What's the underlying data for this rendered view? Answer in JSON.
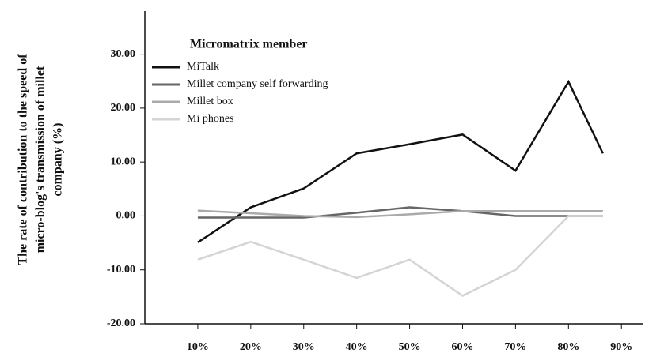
{
  "chart_data": {
    "type": "line",
    "ylabel": [
      "The rate of contribution to the speed of",
      "micro-blog's transmission of millet",
      "company (%)"
    ],
    "legend_title": "Micromatrix member",
    "legend": "upper left",
    "x": [
      10,
      20,
      30,
      40,
      50,
      60,
      70,
      80,
      86.5
    ],
    "series": [
      {
        "name": "MiTalk",
        "color": "#111111",
        "values": [
          -4.9,
          1.6,
          5.1,
          11.6,
          13.3,
          15.1,
          8.4,
          24.9,
          11.6
        ]
      },
      {
        "name": "Millet company self forwarding",
        "color": "#666666",
        "values": [
          -0.3,
          -0.3,
          -0.3,
          0.6,
          1.6,
          0.9,
          0,
          0,
          0
        ]
      },
      {
        "name": "Millet box",
        "color": "#aaaaaa",
        "values": [
          1.0,
          0.5,
          0,
          -0.2,
          0.3,
          0.9,
          0.9,
          0.9,
          0.9
        ]
      },
      {
        "name": "Mi phones",
        "color": "#d4d4d4",
        "values": [
          -8.1,
          -4.8,
          -8.1,
          -11.5,
          -8.1,
          -14.8,
          -10,
          0,
          0
        ]
      }
    ],
    "xlim": [
      0,
      94
    ],
    "xticks": [
      {
        "value": 10,
        "label": "10%"
      },
      {
        "value": 20,
        "label": "20%"
      },
      {
        "value": 30,
        "label": "30%"
      },
      {
        "value": 40,
        "label": "40%"
      },
      {
        "value": 50,
        "label": "50%"
      },
      {
        "value": 60,
        "label": "60%"
      },
      {
        "value": 70,
        "label": "70%"
      },
      {
        "value": 80,
        "label": "80%"
      },
      {
        "value": 90,
        "label": "90%"
      }
    ],
    "ylim": [
      -20,
      38
    ],
    "yticks": [
      {
        "value": -20,
        "label": "-20.00"
      },
      {
        "value": -10,
        "label": "-10.00"
      },
      {
        "value": 0,
        "label": "0.00"
      },
      {
        "value": 10,
        "label": "10.00"
      },
      {
        "value": 20,
        "label": "20.00"
      },
      {
        "value": 30,
        "label": "30.00"
      }
    ],
    "grid": false
  }
}
